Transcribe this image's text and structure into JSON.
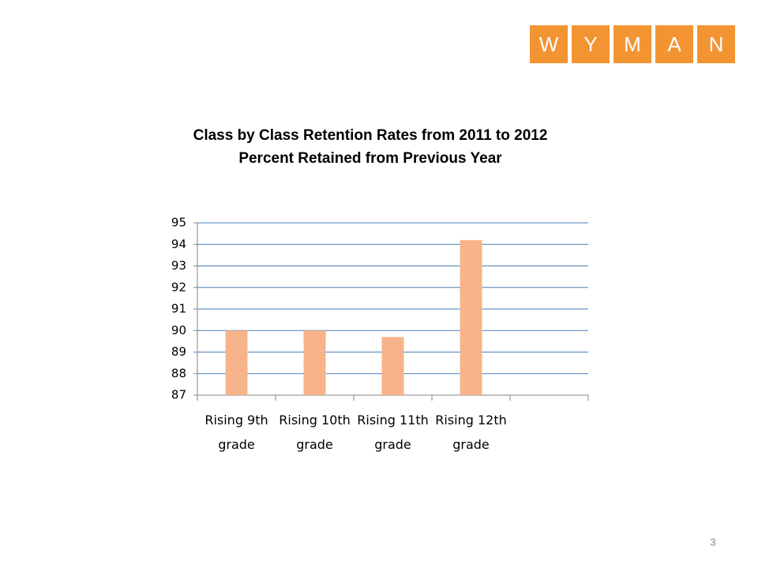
{
  "logo": [
    "W",
    "Y",
    "M",
    "A",
    "N"
  ],
  "chart_data": {
    "type": "bar",
    "title": "Class by Class Retention Rates from 2011 to 2012",
    "subtitle": "Percent Retained from Previous Year",
    "categories": [
      "Rising 9th grade",
      "Rising 10th grade",
      "Rising 11th grade",
      "Rising 12th grade",
      null
    ],
    "values": [
      90,
      90,
      89.7,
      94.2,
      null
    ],
    "color": "#f7b38a",
    "ylim": [
      87,
      95
    ],
    "yticks": [
      87,
      88,
      89,
      90,
      91,
      92,
      93,
      94,
      95
    ],
    "grid": true
  },
  "page_number": "3"
}
